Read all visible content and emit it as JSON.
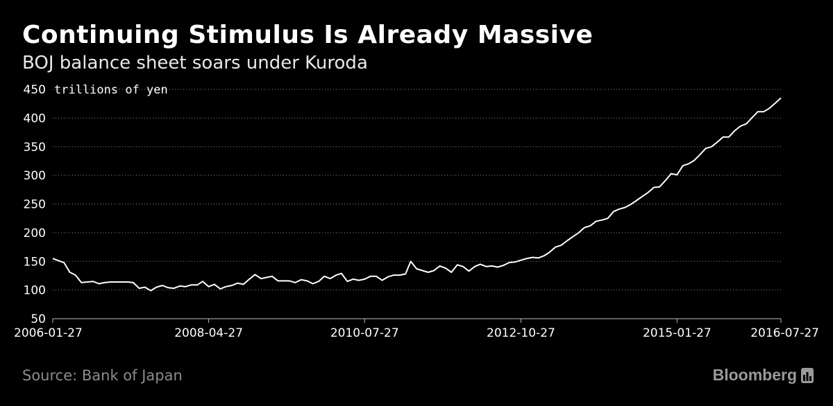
{
  "chart_data": {
    "type": "line",
    "title": "Continuing Stimulus Is Already Massive",
    "subtitle": "BOJ balance sheet soars under Kuroda",
    "unit_label": "trillions of yen",
    "ylim": [
      50,
      450
    ],
    "yticks": [
      50,
      100,
      150,
      200,
      250,
      300,
      350,
      400,
      450
    ],
    "xlim": [
      "2006-01-27",
      "2016-07-27"
    ],
    "xticks": [
      "2006-01-27",
      "2008-04-27",
      "2010-07-27",
      "2012-10-27",
      "2015-01-27",
      "2016-07-27"
    ],
    "grid": "horizontal dotted",
    "line_color": "#ffffff",
    "series": [
      {
        "x": [
          "2006-01-27",
          "2006-02-27",
          "2006-03-27",
          "2006-04-27",
          "2006-05-27",
          "2006-06-27",
          "2006-07-27",
          "2006-08-27",
          "2006-09-27",
          "2006-10-27",
          "2006-11-27",
          "2006-12-27",
          "2007-01-27",
          "2007-02-27",
          "2007-03-27",
          "2007-04-27",
          "2007-05-27",
          "2007-06-27",
          "2007-07-27",
          "2007-08-27",
          "2007-09-27",
          "2007-10-27",
          "2007-11-27",
          "2007-12-27",
          "2008-01-27",
          "2008-02-27",
          "2008-03-27",
          "2008-04-27",
          "2008-05-27",
          "2008-06-27",
          "2008-07-27",
          "2008-08-27",
          "2008-09-27",
          "2008-10-27",
          "2008-11-27",
          "2008-12-27",
          "2009-01-27",
          "2009-02-27",
          "2009-03-27",
          "2009-04-27",
          "2009-05-27",
          "2009-06-27",
          "2009-07-27",
          "2009-08-27",
          "2009-09-27",
          "2009-10-27",
          "2009-11-27",
          "2009-12-27",
          "2010-01-27",
          "2010-02-27",
          "2010-03-27",
          "2010-04-27",
          "2010-05-27",
          "2010-06-27",
          "2010-07-27",
          "2010-08-27",
          "2010-09-27",
          "2010-10-27",
          "2010-11-27",
          "2010-12-27",
          "2011-01-27",
          "2011-02-27",
          "2011-03-27",
          "2011-04-27",
          "2011-05-27",
          "2011-06-27",
          "2011-07-27",
          "2011-08-27",
          "2011-09-27",
          "2011-10-27",
          "2011-11-27",
          "2011-12-27",
          "2012-01-27",
          "2012-02-27",
          "2012-03-27",
          "2012-04-27",
          "2012-05-27",
          "2012-06-27",
          "2012-07-27",
          "2012-08-27",
          "2012-09-27",
          "2012-10-27",
          "2012-11-27",
          "2012-12-27",
          "2013-01-27",
          "2013-02-27",
          "2013-03-27",
          "2013-04-27",
          "2013-05-27",
          "2013-06-27",
          "2013-07-27",
          "2013-08-27",
          "2013-09-27",
          "2013-10-27",
          "2013-11-27",
          "2013-12-27",
          "2014-01-27",
          "2014-02-27",
          "2014-03-27",
          "2014-04-27",
          "2014-05-27",
          "2014-06-27",
          "2014-07-27",
          "2014-08-27",
          "2014-09-27",
          "2014-10-27",
          "2014-11-27",
          "2014-12-27",
          "2015-01-27",
          "2015-02-27",
          "2015-03-27",
          "2015-04-27",
          "2015-05-27",
          "2015-06-27",
          "2015-07-27",
          "2015-08-27",
          "2015-09-27",
          "2015-10-27",
          "2015-11-27",
          "2015-12-27",
          "2016-01-27",
          "2016-02-27",
          "2016-03-27",
          "2016-04-27",
          "2016-05-27",
          "2016-06-27",
          "2016-07-27"
        ],
        "y": [
          155,
          151,
          148,
          131,
          126,
          113,
          114,
          115,
          111,
          113,
          114,
          114,
          114,
          114,
          113,
          103,
          105,
          99,
          105,
          108,
          104,
          103,
          107,
          106,
          109,
          109,
          115,
          106,
          110,
          102,
          106,
          108,
          112,
          110,
          119,
          127,
          120,
          122,
          124,
          116,
          116,
          116,
          113,
          118,
          116,
          111,
          115,
          124,
          120,
          126,
          129,
          115,
          119,
          117,
          119,
          124,
          124,
          117,
          123,
          126,
          126,
          128,
          150,
          137,
          134,
          131,
          134,
          142,
          138,
          131,
          144,
          141,
          133,
          141,
          145,
          141,
          142,
          140,
          143,
          148,
          149,
          152,
          155,
          157,
          156,
          160,
          166,
          175,
          178,
          186,
          193,
          200,
          209,
          212,
          220,
          222,
          225,
          237,
          241,
          244,
          249,
          256,
          263,
          270,
          279,
          280,
          291,
          303,
          301,
          317,
          320,
          326,
          336,
          347,
          350,
          358,
          367,
          367,
          378,
          386,
          390,
          401,
          411,
          411,
          417,
          426,
          435
        ]
      }
    ]
  },
  "footer": {
    "source": "Source: Bank of Japan",
    "brand": "Bloomberg"
  }
}
